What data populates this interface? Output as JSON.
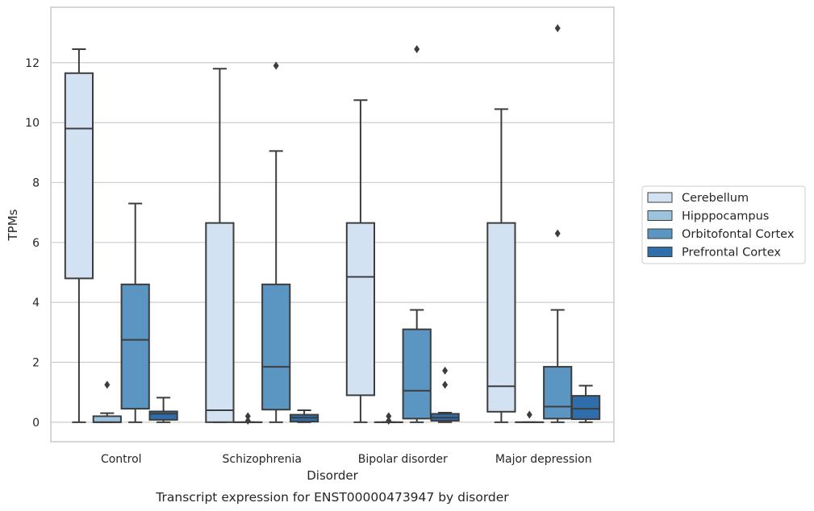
{
  "caption": "Transcript expression for ENST00000473947 by disorder",
  "chart_data": {
    "type": "box",
    "xlabel": "Disorder",
    "ylabel": "TPMs",
    "ylim": [
      -0.65,
      13.85
    ],
    "yticks": [
      0,
      2,
      4,
      6,
      8,
      10,
      12
    ],
    "grid": "horizontal",
    "legend_position": "right",
    "categories": [
      "Control",
      "Schizophrenia",
      "Bipolar disorder",
      "Major depression"
    ],
    "series": [
      {
        "name": "Cerebellum",
        "color": "#d3e2f2",
        "boxes": [
          {
            "whisker_low": 0,
            "q1": 4.8,
            "median": 9.8,
            "q3": 11.65,
            "whisker_high": 12.45,
            "outliers": []
          },
          {
            "whisker_low": 0,
            "q1": 0,
            "median": 0.4,
            "q3": 6.65,
            "whisker_high": 11.8,
            "outliers": []
          },
          {
            "whisker_low": 0,
            "q1": 0.9,
            "median": 4.85,
            "q3": 6.65,
            "whisker_high": 10.75,
            "outliers": []
          },
          {
            "whisker_low": 0,
            "q1": 0.35,
            "median": 1.2,
            "q3": 6.65,
            "whisker_high": 10.45,
            "outliers": []
          }
        ]
      },
      {
        "name": "Hipppocampus",
        "color": "#9cc3dd",
        "boxes": [
          {
            "whisker_low": 0,
            "q1": 0,
            "median": 0,
            "q3": 0.2,
            "whisker_high": 0.3,
            "outliers": [
              1.25
            ]
          },
          {
            "whisker_low": 0,
            "q1": 0,
            "median": 0,
            "q3": 0,
            "whisker_high": 0,
            "outliers": [
              0.05,
              0.2
            ]
          },
          {
            "whisker_low": 0,
            "q1": 0,
            "median": 0,
            "q3": 0,
            "whisker_high": 0,
            "outliers": [
              0.05,
              0.2
            ]
          },
          {
            "whisker_low": 0,
            "q1": 0,
            "median": 0,
            "q3": 0,
            "whisker_high": 0,
            "outliers": [
              0.25
            ]
          }
        ]
      },
      {
        "name": "Orbitofontal Cortex",
        "color": "#5a96c1",
        "boxes": [
          {
            "whisker_low": 0,
            "q1": 0.45,
            "median": 2.75,
            "q3": 4.6,
            "whisker_high": 7.3,
            "outliers": []
          },
          {
            "whisker_low": 0,
            "q1": 0.42,
            "median": 1.85,
            "q3": 4.6,
            "whisker_high": 9.05,
            "outliers": [
              11.9
            ]
          },
          {
            "whisker_low": 0,
            "q1": 0.12,
            "median": 1.05,
            "q3": 3.1,
            "whisker_high": 3.75,
            "outliers": [
              12.45
            ]
          },
          {
            "whisker_low": 0,
            "q1": 0.12,
            "median": 0.52,
            "q3": 1.85,
            "whisker_high": 3.75,
            "outliers": [
              6.3,
              13.15
            ]
          }
        ]
      },
      {
        "name": "Prefrontal Cortex",
        "color": "#2f6eaa",
        "boxes": [
          {
            "whisker_low": 0,
            "q1": 0.08,
            "median": 0.28,
            "q3": 0.36,
            "whisker_high": 0.82,
            "outliers": []
          },
          {
            "whisker_low": 0,
            "q1": 0.02,
            "median": 0.15,
            "q3": 0.25,
            "whisker_high": 0.4,
            "outliers": []
          },
          {
            "whisker_low": 0,
            "q1": 0.05,
            "median": 0.15,
            "q3": 0.28,
            "whisker_high": 0.32,
            "outliers": [
              1.25,
              1.72
            ]
          },
          {
            "whisker_low": 0,
            "q1": 0.1,
            "median": 0.45,
            "q3": 0.88,
            "whisker_high": 1.22,
            "outliers": []
          }
        ]
      }
    ]
  }
}
